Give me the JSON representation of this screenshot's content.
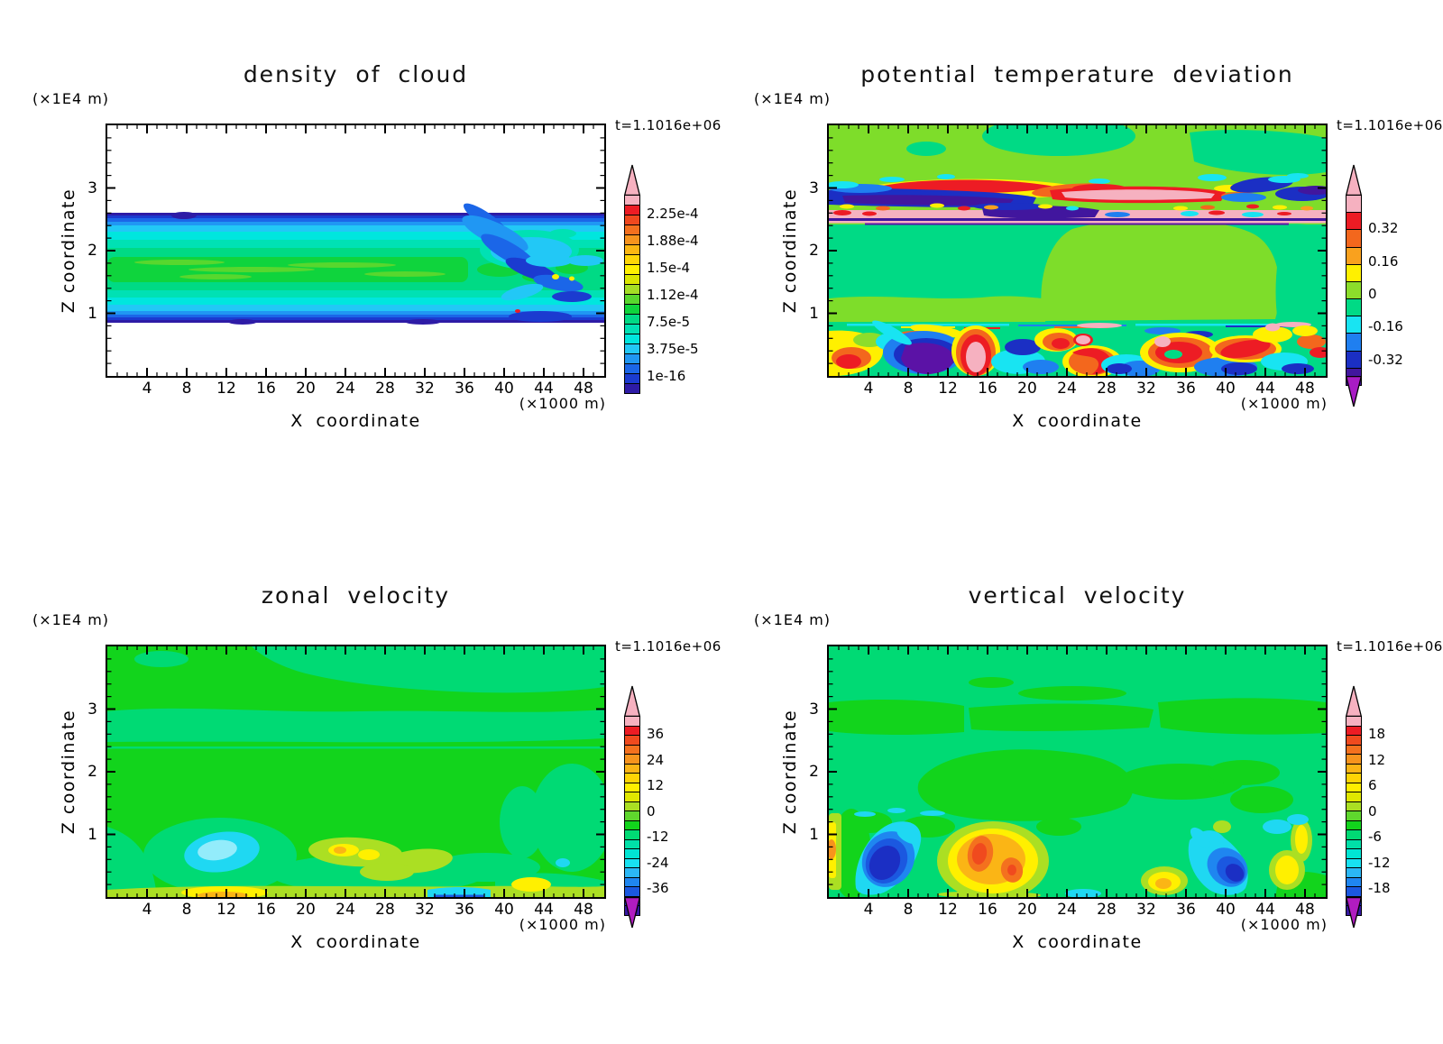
{
  "figure": {
    "time_label": "t=1.1016e+06",
    "z_axis_unit": "(×1E4 m)",
    "x_axis_unit": "(×1000 m)",
    "x_axis_title": "X coordinate",
    "y_axis_title": "Z coordinate",
    "background_color": "#ffffff",
    "frame_color": "#000000",
    "text_color": "#000000"
  },
  "axes": {
    "x_tick_labels": [
      "4",
      "8",
      "12",
      "16",
      "20",
      "24",
      "28",
      "32",
      "36",
      "40",
      "44",
      "48"
    ],
    "x_tick_values": [
      4,
      8,
      12,
      16,
      20,
      24,
      28,
      32,
      36,
      40,
      44,
      48
    ],
    "y_tick_labels": [
      "3",
      "2",
      "1"
    ],
    "y_tick_values": [
      3,
      2,
      1
    ],
    "x_range": [
      0,
      50.5
    ],
    "z_range": [
      0,
      4
    ],
    "x_minor_step": 1,
    "y_minor_step": 0.2
  },
  "chart_data": [
    {
      "type": "filled_contour",
      "title": "density of cloud",
      "time": "t=1.1016e+06",
      "x_axis": {
        "label": "X coordinate",
        "unit": "(×1000 m)",
        "range": [
          0,
          50.5
        ],
        "major_ticks": [
          4,
          8,
          12,
          16,
          20,
          24,
          28,
          32,
          36,
          40,
          44,
          48
        ]
      },
      "z_axis": {
        "label": "Z coordinate",
        "unit": "(×1E4 m)",
        "range": [
          0,
          4
        ],
        "major_ticks": [
          1,
          2,
          3
        ]
      },
      "colorbar": {
        "tick_labels": [
          "2.25e-4",
          "1.88e-4",
          "1.5e-4",
          "1.12e-4",
          "7.5e-5",
          "3.75e-5",
          "1e-16"
        ],
        "tick_at_segment": [
          2,
          5,
          8,
          11,
          14,
          17,
          20
        ],
        "level_step": 1.25e-05,
        "max_level": 0.00025,
        "colors": [
          "#f6b1c0",
          "#ed1c24",
          "#f0481e",
          "#f4701e",
          "#f7941d",
          "#fbb712",
          "#fed607",
          "#fff000",
          "#dbe600",
          "#a5de25",
          "#58d72e",
          "#0fd43d",
          "#00da85",
          "#00e1b4",
          "#00e6de",
          "#22c8f6",
          "#2097f3",
          "#1b66e8",
          "#1b3bd0",
          "#2e1ba6"
        ],
        "arrow_top": "#f6b1c0",
        "arrow_bottom": null
      },
      "features": [
        "horizontal cloud layer between z≈0.9e4 m and z≈2.55e4 m, white (zero) above and below",
        "density increases from 1e-16 at layer edges (dark blue/purple) through cyan to green core ≈1.1e-4 near z≈1.5e4 m",
        "turbulent blue eddies breaking the layer at x≈36-50 (×1000 m) with tiny yellow and red specks"
      ]
    },
    {
      "type": "filled_contour",
      "title": "potential temperature deviation",
      "time": "t=1.1016e+06",
      "x_axis": {
        "label": "X coordinate",
        "unit": "(×1000 m)",
        "range": [
          0,
          50.5
        ],
        "major_ticks": [
          4,
          8,
          12,
          16,
          20,
          24,
          28,
          32,
          36,
          40,
          44,
          48
        ]
      },
      "z_axis": {
        "label": "Z coordinate",
        "unit": "(×1E4 m)",
        "range": [
          0,
          4
        ],
        "major_ticks": [
          1,
          2,
          3
        ]
      },
      "colorbar": {
        "tick_labels": [
          "0.32",
          "0.16",
          "0",
          "-0.16",
          "-0.32"
        ],
        "tick_at_segment": [
          2,
          4,
          6,
          8,
          10
        ],
        "level_step": 0.08,
        "max_level": 0.48,
        "min_level": -0.4,
        "colors": [
          "#f6b1c0",
          "#ed1c24",
          "#f3671d",
          "#f9a11e",
          "#fff000",
          "#8cdd2b",
          "#00da85",
          "#18e4f2",
          "#1f7ff0",
          "#1b2fc4",
          "#41169e"
        ],
        "arrow_top": "#f6b1c0",
        "arrow_bottom": "#a81cc4"
      },
      "features": [
        "near-zero interior: light green (0..0.08) upper region, spring green (-0.08..0) middle region",
        "strong layered perturbations at z≈2.55-3.1e4 m: red/orange warm streaks, pink bands (>0.4), navy/indigo cold bands (<-0.3)",
        "turbulent boundary layer below z≈0.9e4 m with swirls spanning full range ±0.4 (purple, navy, cyan, yellow, orange, red, pink)"
      ]
    },
    {
      "type": "filled_contour",
      "title": "zonal velocity",
      "time": "t=1.1016e+06",
      "x_axis": {
        "label": "X coordinate",
        "unit": "(×1000 m)",
        "range": [
          0,
          50.5
        ],
        "major_ticks": [
          4,
          8,
          12,
          16,
          20,
          24,
          28,
          32,
          36,
          40,
          44,
          48
        ]
      },
      "z_axis": {
        "label": "Z coordinate",
        "unit": "(×1E4 m)",
        "range": [
          0,
          4
        ],
        "major_ticks": [
          1,
          2,
          3
        ]
      },
      "colorbar": {
        "tick_labels": [
          "36",
          "24",
          "12",
          "0",
          "-12",
          "-24",
          "-36"
        ],
        "tick_at_segment": [
          2,
          5,
          8,
          11,
          14,
          17,
          20
        ],
        "level_step": 4,
        "max_level": 44,
        "min_level": -40,
        "colors": [
          "#f6b1c0",
          "#ed1c24",
          "#f04a1e",
          "#f4711e",
          "#f7941d",
          "#fbb515",
          "#fed405",
          "#ffee00",
          "#e0e700",
          "#abdf23",
          "#5fd72d",
          "#12d41c",
          "#00da74",
          "#00e0a8",
          "#00e5d4",
          "#18e2f2",
          "#2bb7f5",
          "#1f86f0",
          "#1b58e0",
          "#1b2fc4",
          "#3618a2"
        ],
        "arrow_top": "#f6b1c0",
        "arrow_bottom": "#b01cc0"
      },
      "features": [
        "background mostly 0..4 (bright green) with -4..0 (spring green) band at z≈2.4-3.0e4 m and upper right region",
        "negative pocket ≈-12 (cyan, lighter core) at x≈8-16, z≈0.5-1.2e4 m",
        "positive yellow-green/yellow streaks ≈+8..+12 at x≈20-34 near z≈0.8e4 m and along the bottom at x≈8-16",
        "cyan/blue negative strip at bottom x≈33-40, yellow patch x≈42-46"
      ]
    },
    {
      "type": "filled_contour",
      "title": "vertical velocity",
      "time": "t=1.1016e+06",
      "x_axis": {
        "label": "X coordinate",
        "unit": "(×1000 m)",
        "range": [
          0,
          50.5
        ],
        "major_ticks": [
          4,
          8,
          12,
          16,
          20,
          24,
          28,
          32,
          36,
          40,
          44,
          48
        ]
      },
      "z_axis": {
        "label": "Z coordinate",
        "unit": "(×1E4 m)",
        "range": [
          0,
          4
        ],
        "major_ticks": [
          1,
          2,
          3
        ]
      },
      "colorbar": {
        "tick_labels": [
          "18",
          "12",
          "6",
          "0",
          "-6",
          "-12",
          "-18"
        ],
        "tick_at_segment": [
          2,
          5,
          8,
          11,
          14,
          17,
          20
        ],
        "level_step": 2,
        "max_level": 22,
        "min_level": -20,
        "colors": [
          "#f6b1c0",
          "#ed1c24",
          "#f04a1e",
          "#f4711e",
          "#f7941d",
          "#fbb515",
          "#fed405",
          "#ffee00",
          "#e0e700",
          "#abdf23",
          "#5fd72d",
          "#12d41c",
          "#00da74",
          "#00e0a8",
          "#00e5d4",
          "#18e2f2",
          "#2bb7f5",
          "#1f86f0",
          "#1b58e0",
          "#1b2fc4",
          "#3618a2"
        ],
        "arrow_top": "#f6b1c0",
        "arrow_bottom": "#b01cc0"
      },
      "features": [
        "background mostly -2..0 (spring green) with 0..2 (bright green) patches near z≈2.5-3.0e4 m and mid-level blob x≈10-30",
        "strong downdraft ≈-14 (navy core, blue/cyan rings) tilted blob at x≈4-9, z≈0.2-1.0e4 m; second downdraft at x≈40-44",
        "strong updraft ≈+16 (red/orange cores, amber/yellow rings) at x≈13-22, z≈0.1-1.2e4 m",
        "smaller yellow updrafts at x≈0-1, x≈33-35, x≈45-50 near surface"
      ]
    }
  ]
}
